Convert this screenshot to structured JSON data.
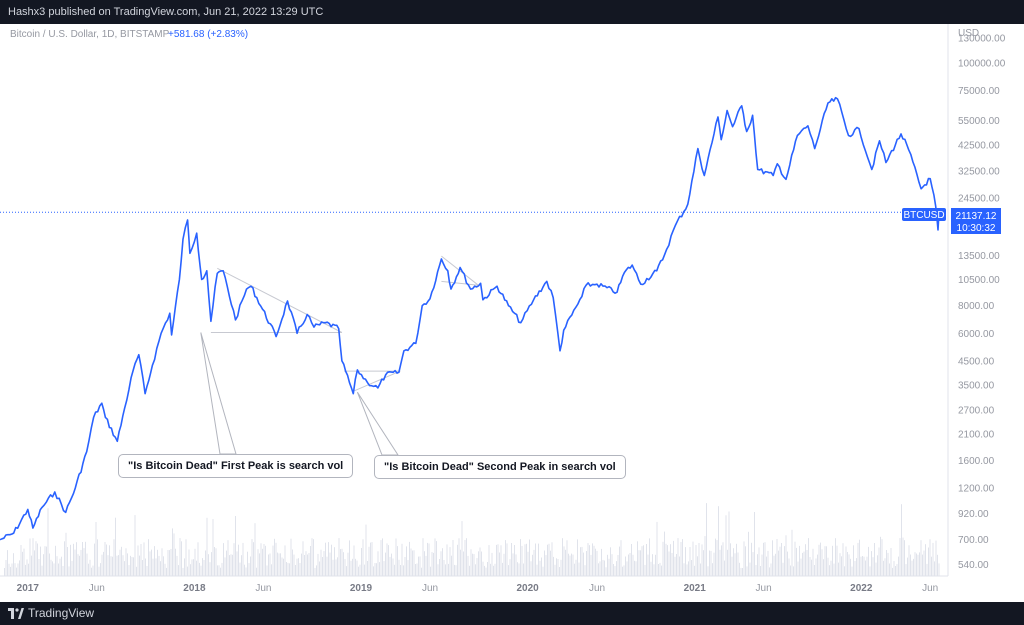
{
  "header": {
    "publish_text": "Hashx3 published on TradingView.com, Jun 21, 2022 13:29 UTC"
  },
  "legend": {
    "symbol_text": "Bitcoin / U.S. Dollar, 1D, BITSTAMP",
    "change_text": "+581.68 (+2.83%)"
  },
  "price_axis": {
    "currency": "USD",
    "ticks": [
      "130000.00",
      "100000.00",
      "75000.00",
      "55000.00",
      "42500.00",
      "32500.00",
      "24500.00",
      "13500.00",
      "10500.00",
      "8000.00",
      "6000.00",
      "4500.00",
      "3500.00",
      "2700.00",
      "2100.00",
      "1600.00",
      "1200.00",
      "920.00",
      "700.00",
      "540.00"
    ],
    "tick_values": [
      130000,
      100000,
      75000,
      55000,
      42500,
      32500,
      24500,
      13500,
      10500,
      8000,
      6000,
      4500,
      3500,
      2700,
      2100,
      1600,
      1200,
      920,
      700,
      540
    ]
  },
  "time_axis": {
    "labels": [
      "2017",
      "Jun",
      "2018",
      "Jun",
      "2019",
      "Jun",
      "2020",
      "Jun",
      "2021",
      "Jun",
      "2022",
      "Jun"
    ],
    "dates": [
      "2017-01-01",
      "2017-06-01",
      "2018-01-01",
      "2018-06-01",
      "2019-01-01",
      "2019-06-01",
      "2020-01-01",
      "2020-06-01",
      "2021-01-01",
      "2021-06-01",
      "2022-01-01",
      "2022-06-01"
    ],
    "bold_years": [
      "2017",
      "2018",
      "2019",
      "2020",
      "2021",
      "2022"
    ]
  },
  "last_price": {
    "symbol": "BTCUSD",
    "price": "21137.12",
    "countdown": "10:30:32"
  },
  "annotations": [
    {
      "text": "\"Is Bitcoin Dead\" First Peak is search vol"
    },
    {
      "text": "\"Is Bitcoin Dead\" Second Peak in search vol"
    }
  ],
  "footer": {
    "brand": "TradingView"
  },
  "colors": {
    "line": "#2962ff",
    "background": "#ffffff",
    "frame": "#131722",
    "volume": "#e0e3eb",
    "axis_text": "#9598a1"
  },
  "chart_data": {
    "type": "line",
    "title": "Bitcoin / U.S. Dollar, 1D, BITSTAMP",
    "xlabel": "",
    "ylabel": "",
    "y_scale": "log",
    "ylim": [
      480,
      150000
    ],
    "xlim": [
      "2016-11-01",
      "2022-07-10"
    ],
    "series": [
      {
        "name": "BTCUSD",
        "points": [
          [
            "2016-11-01",
            700
          ],
          [
            "2016-12-01",
            750
          ],
          [
            "2017-01-01",
            960
          ],
          [
            "2017-01-12",
            790
          ],
          [
            "2017-02-01",
            980
          ],
          [
            "2017-03-01",
            1150
          ],
          [
            "2017-03-25",
            930
          ],
          [
            "2017-04-15",
            1200
          ],
          [
            "2017-05-10",
            1750
          ],
          [
            "2017-05-25",
            2500
          ],
          [
            "2017-06-12",
            2900
          ],
          [
            "2017-06-20",
            2500
          ],
          [
            "2017-07-16",
            1950
          ],
          [
            "2017-08-01",
            2750
          ],
          [
            "2017-08-20",
            4100
          ],
          [
            "2017-09-01",
            4800
          ],
          [
            "2017-09-15",
            3200
          ],
          [
            "2017-10-01",
            4300
          ],
          [
            "2017-10-20",
            6000
          ],
          [
            "2017-11-08",
            7400
          ],
          [
            "2017-11-12",
            5900
          ],
          [
            "2017-11-29",
            10500
          ],
          [
            "2017-12-07",
            16000
          ],
          [
            "2017-12-17",
            19500
          ],
          [
            "2017-12-22",
            13800
          ],
          [
            "2018-01-06",
            17000
          ],
          [
            "2018-01-17",
            10500
          ],
          [
            "2018-01-28",
            11500
          ],
          [
            "2018-02-06",
            6800
          ],
          [
            "2018-02-20",
            11200
          ],
          [
            "2018-03-05",
            11500
          ],
          [
            "2018-04-01",
            6900
          ],
          [
            "2018-04-25",
            9500
          ],
          [
            "2018-05-05",
            9800
          ],
          [
            "2018-06-29",
            5800
          ],
          [
            "2018-07-24",
            8400
          ],
          [
            "2018-08-14",
            6000
          ],
          [
            "2018-09-05",
            7300
          ],
          [
            "2018-09-20",
            6400
          ],
          [
            "2018-10-15",
            6700
          ],
          [
            "2018-11-13",
            6300
          ],
          [
            "2018-11-20",
            4500
          ],
          [
            "2018-12-15",
            3200
          ],
          [
            "2018-12-24",
            4100
          ],
          [
            "2019-01-15",
            3600
          ],
          [
            "2019-02-07",
            3400
          ],
          [
            "2019-02-24",
            3900
          ],
          [
            "2019-03-25",
            4000
          ],
          [
            "2019-04-05",
            5000
          ],
          [
            "2019-05-01",
            5400
          ],
          [
            "2019-05-15",
            8000
          ],
          [
            "2019-06-01",
            8600
          ],
          [
            "2019-06-26",
            13000
          ],
          [
            "2019-07-10",
            11500
          ],
          [
            "2019-07-17",
            9500
          ],
          [
            "2019-08-06",
            11900
          ],
          [
            "2019-08-29",
            9500
          ],
          [
            "2019-09-20",
            10100
          ],
          [
            "2019-09-25",
            8500
          ],
          [
            "2019-10-26",
            9800
          ],
          [
            "2019-11-20",
            8000
          ],
          [
            "2019-12-17",
            6700
          ],
          [
            "2020-01-14",
            8500
          ],
          [
            "2020-02-12",
            10300
          ],
          [
            "2020-02-26",
            8700
          ],
          [
            "2020-03-12",
            5000
          ],
          [
            "2020-03-20",
            6200
          ],
          [
            "2020-04-29",
            8800
          ],
          [
            "2020-05-08",
            9900
          ],
          [
            "2020-06-01",
            10000
          ],
          [
            "2020-07-15",
            9200
          ],
          [
            "2020-07-31",
            11300
          ],
          [
            "2020-08-17",
            12200
          ],
          [
            "2020-09-05",
            10000
          ],
          [
            "2020-10-10",
            11500
          ],
          [
            "2020-10-27",
            13600
          ],
          [
            "2020-11-20",
            18500
          ],
          [
            "2020-12-17",
            23000
          ],
          [
            "2021-01-08",
            41000
          ],
          [
            "2021-01-22",
            31000
          ],
          [
            "2021-02-21",
            57000
          ],
          [
            "2021-02-28",
            45000
          ],
          [
            "2021-03-13",
            61000
          ],
          [
            "2021-03-25",
            51500
          ],
          [
            "2021-04-14",
            64000
          ],
          [
            "2021-04-25",
            49000
          ],
          [
            "2021-05-08",
            58000
          ],
          [
            "2021-05-19",
            33000
          ],
          [
            "2021-06-22",
            31000
          ],
          [
            "2021-07-01",
            35000
          ],
          [
            "2021-07-20",
            29800
          ],
          [
            "2021-08-14",
            47000
          ],
          [
            "2021-09-06",
            52000
          ],
          [
            "2021-09-21",
            41000
          ],
          [
            "2021-10-20",
            66000
          ],
          [
            "2021-11-10",
            68800
          ],
          [
            "2021-12-04",
            47000
          ],
          [
            "2021-12-27",
            50500
          ],
          [
            "2022-01-24",
            33000
          ],
          [
            "2022-02-10",
            44500
          ],
          [
            "2022-02-24",
            35500
          ],
          [
            "2022-03-29",
            47800
          ],
          [
            "2022-04-15",
            40500
          ],
          [
            "2022-05-12",
            27000
          ],
          [
            "2022-06-01",
            30000
          ],
          [
            "2022-06-13",
            22500
          ],
          [
            "2022-06-18",
            17600
          ],
          [
            "2022-06-21",
            21137.12
          ]
        ]
      }
    ]
  }
}
